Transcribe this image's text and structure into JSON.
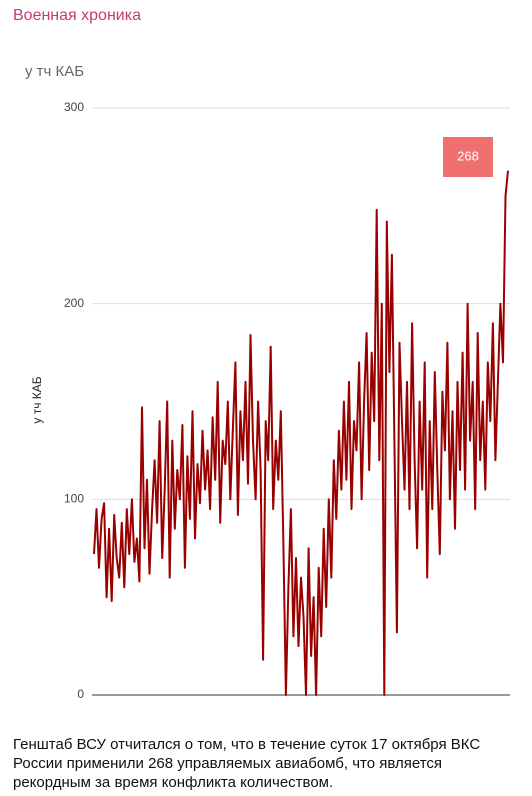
{
  "header": {
    "channel": "Военная хроника"
  },
  "chart_data": {
    "type": "line",
    "title": "у тч КАБ",
    "y_label": "у тч КАБ",
    "series": [
      {
        "name": "у тч КАБ",
        "color": "#990000",
        "values": [
          72,
          95,
          65,
          90,
          98,
          50,
          85,
          48,
          92,
          70,
          60,
          88,
          55,
          95,
          72,
          100,
          68,
          80,
          58,
          147,
          75,
          110,
          62,
          95,
          120,
          88,
          140,
          70,
          105,
          150,
          60,
          130,
          85,
          115,
          100,
          138,
          65,
          122,
          90,
          145,
          80,
          118,
          98,
          135,
          105,
          125,
          95,
          142,
          110,
          160,
          88,
          130,
          118,
          150,
          100,
          135,
          170,
          92,
          145,
          120,
          160,
          108,
          184,
          130,
          100,
          150,
          115,
          18,
          140,
          120,
          178,
          95,
          130,
          110,
          145,
          80,
          0,
          55,
          95,
          30,
          70,
          25,
          60,
          40,
          0,
          75,
          20,
          50,
          0,
          65,
          30,
          85,
          45,
          100,
          60,
          120,
          90,
          135,
          105,
          150,
          110,
          160,
          95,
          140,
          125,
          170,
          100,
          150,
          185,
          115,
          175,
          140,
          248,
          120,
          200,
          0,
          242,
          165,
          225,
          130,
          32,
          180,
          140,
          105,
          160,
          95,
          190,
          120,
          75,
          150,
          105,
          170,
          60,
          140,
          95,
          165,
          115,
          72,
          155,
          125,
          180,
          100,
          145,
          85,
          160,
          115,
          175,
          105,
          200,
          130,
          160,
          95,
          185,
          120,
          150,
          105,
          170,
          140,
          190,
          120,
          160,
          200,
          170,
          255,
          268
        ]
      }
    ],
    "label_index": 164,
    "label_color": "#f07070",
    "ylim": [
      0,
      300
    ],
    "yticks": [
      0,
      100,
      200,
      300
    ],
    "grid": true
  },
  "post": {
    "text": "Генштаб ВСУ отчитался о том, что в течение суток 17 октября ВКС России применили 268 управляемых авиабомб, что является рекордным за время конфликта количеством."
  }
}
